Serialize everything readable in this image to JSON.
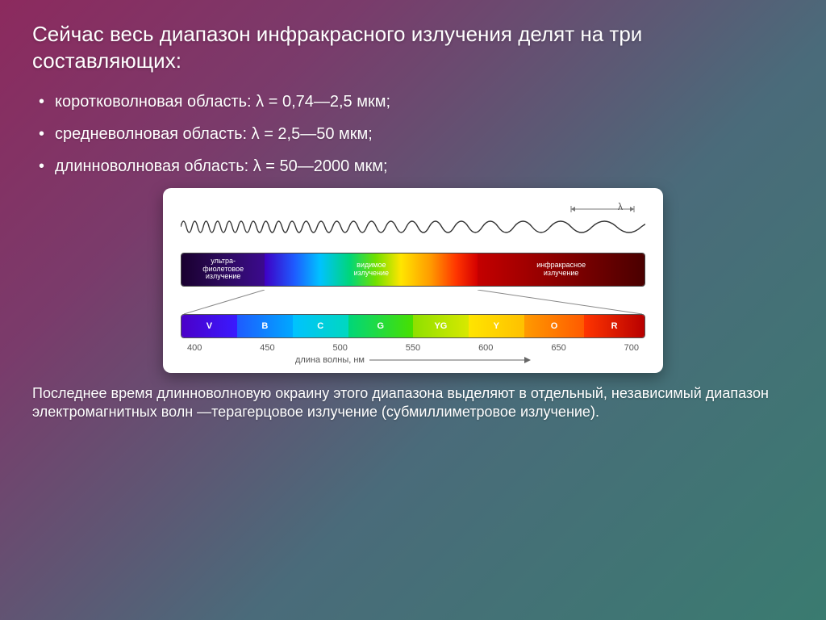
{
  "title": "Сейчас весь диапазон инфракрасного излучения делят на три составляющих:",
  "bullets": [
    "коротковолновая область: λ = 0,74—2,5 мкм;",
    "средневолновая область: λ = 2,5—50 мкм;",
    "длинноволновая область: λ = 50—2000 мкм;"
  ],
  "diagram": {
    "wave": {
      "stroke": "#333333",
      "stroke_width": 1.4,
      "lambda_symbol": "λ",
      "lambda_tick_color": "#777777"
    },
    "top_bar": {
      "segments": [
        {
          "key": "uv",
          "label": "ультра-\nфиолетовое\nизлучение"
        },
        {
          "key": "vis",
          "label": "видимое\nизлучение"
        },
        {
          "key": "ir",
          "label": "инфракрасное\nизлучение"
        }
      ]
    },
    "expanded_bar": {
      "segs": [
        {
          "letter": "V",
          "width_pct": 12,
          "bg": "linear-gradient(90deg,#4b00c8,#3a1aff)"
        },
        {
          "letter": "B",
          "width_pct": 12,
          "bg": "linear-gradient(90deg,#1e5bff,#00a8ff)"
        },
        {
          "letter": "C",
          "width_pct": 12,
          "bg": "linear-gradient(90deg,#00c2ff,#00d8c0)"
        },
        {
          "letter": "G",
          "width_pct": 14,
          "bg": "linear-gradient(90deg,#00d67a,#48e000)"
        },
        {
          "letter": "YG",
          "width_pct": 12,
          "bg": "linear-gradient(90deg,#8ee000,#d8e800)"
        },
        {
          "letter": "Y",
          "width_pct": 12,
          "bg": "linear-gradient(90deg,#ffe500,#ffc000)"
        },
        {
          "letter": "O",
          "width_pct": 13,
          "bg": "linear-gradient(90deg,#ff9a00,#ff5a00)"
        },
        {
          "letter": "R",
          "width_pct": 13,
          "bg": "linear-gradient(90deg,#ff3500,#b80000)"
        }
      ]
    },
    "axis_ticks": [
      "400",
      "450",
      "500",
      "550",
      "600",
      "650",
      "700"
    ],
    "axis_label": "длина волны, нм",
    "axis_color": "#666666"
  },
  "footer": "Последнее время длинноволновую окраину этого диапазона выделяют в отдельный, независимый диапазон электромагнитных волн —терагерцовое излучение (субмиллиметровое излучение)."
}
